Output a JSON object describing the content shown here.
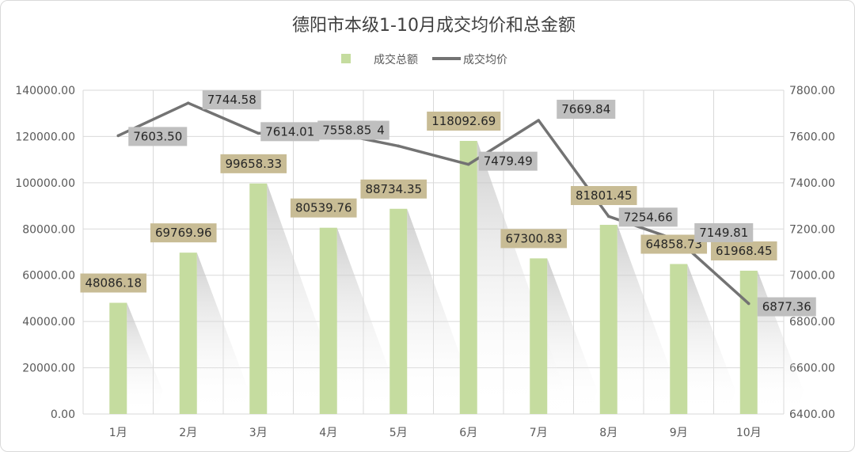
{
  "chart_data": {
    "type": "bar",
    "title": "德阳市本级1-10月成交均价和总金额",
    "categories": [
      "1月",
      "2月",
      "3月",
      "4月",
      "5月",
      "6月",
      "7月",
      "8月",
      "9月",
      "10月"
    ],
    "series": [
      {
        "name": "成交总额",
        "type": "bar",
        "axis": "left",
        "values": [
          48086.18,
          69769.96,
          99658.33,
          80539.76,
          88734.35,
          118092.69,
          67300.83,
          81801.45,
          64858.73,
          61968.45
        ],
        "labels": [
          "48086.18",
          "69769.96",
          "99658.33",
          "80539.76",
          "88734.35",
          "118092.69",
          "67300.83",
          "81801.45",
          "64858.73",
          "61968.45"
        ]
      },
      {
        "name": "成交均价",
        "type": "line",
        "axis": "right",
        "values": [
          7603.5,
          7744.58,
          7614.01,
          7620.14,
          7558.85,
          7479.49,
          7669.84,
          7254.66,
          7149.81,
          6877.36
        ],
        "labels": [
          "7603.50",
          "7744.58",
          "7614.01",
          "7620.14",
          "7558.85",
          "7479.49",
          "7669.84",
          "7254.66",
          "7149.81",
          "6877.36"
        ]
      }
    ],
    "y_left": {
      "range": [
        0,
        140000
      ],
      "ticks": [
        "0.00",
        "20000.00",
        "40000.00",
        "60000.00",
        "80000.00",
        "100000.00",
        "120000.00",
        "140000.00"
      ]
    },
    "y_right": {
      "range": [
        6400,
        7800
      ],
      "ticks": [
        "6400.00",
        "6600.00",
        "6800.00",
        "7000.00",
        "7200.00",
        "7400.00",
        "7600.00",
        "7800.00"
      ]
    },
    "grid": true,
    "legend_position": "top-center",
    "colors": {
      "bar": "#c5dc9f",
      "bar_label_bg": "#c8bc95",
      "line": "#737373",
      "line_label_bg": "#bfbfbf",
      "grid": "#d9d9d9"
    }
  }
}
